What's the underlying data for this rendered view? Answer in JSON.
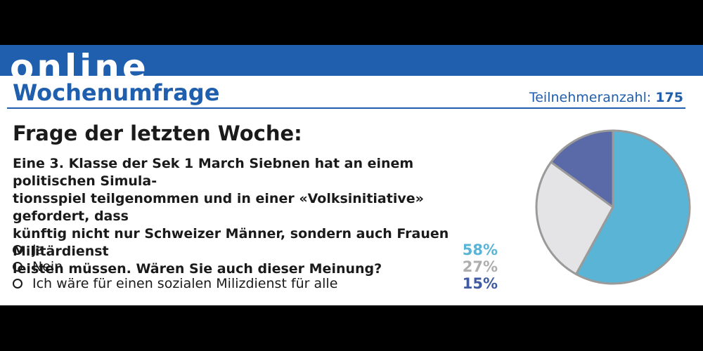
{
  "header": {
    "brand": "online",
    "section_title": "Wochenumfrage",
    "participants_label": "Teilnehmeranzahl:",
    "participants_count": "175"
  },
  "question": {
    "heading": "Frage der letzten Woche:",
    "lines": [
      "Eine 3. Klasse der Sek 1 March Siebnen hat an einem politischen Simula-",
      "tionsspiel teilgenommen und in einer «Volksinitiative» gefordert, dass",
      "künftig nicht nur Schweizer Männer, sondern auch Frauen Militärdienst",
      "leisten müssen. Wären Sie auch dieser Meinung?"
    ]
  },
  "answers": [
    {
      "label": "Ja",
      "percent": "58%",
      "color": "#5ab4d6"
    },
    {
      "label": "Nein",
      "percent": "27%",
      "color": "#aeaeae"
    },
    {
      "label": "Ich wäre für einen sozialen Milizdienst für alle",
      "percent": "15%",
      "color": "#3f5aa0"
    }
  ],
  "chart_data": {
    "type": "pie",
    "categories": [
      "Ja",
      "Nein",
      "Ich wäre für einen sozialen Milizdienst für alle"
    ],
    "values": [
      58,
      27,
      15
    ],
    "colors": [
      "#5ab4d6",
      "#e4e4e6",
      "#5a6aa8"
    ],
    "start": "top, clockwise"
  }
}
